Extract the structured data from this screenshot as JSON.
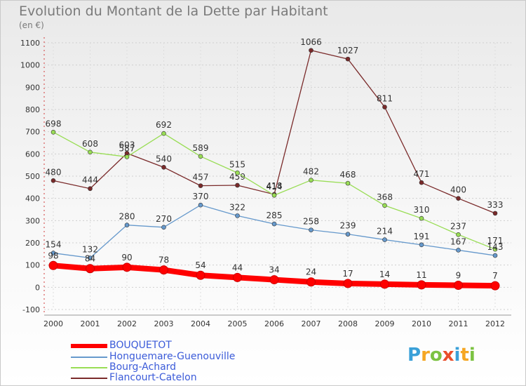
{
  "page": {
    "title": "Evolution du Montant de la Dette par Habitant",
    "subtitle": "(en €)"
  },
  "chart_data": {
    "type": "line",
    "x": [
      "2000",
      "2001",
      "2002",
      "2003",
      "2004",
      "2005",
      "2006",
      "2007",
      "2008",
      "2009",
      "2010",
      "2011",
      "2012"
    ],
    "ylim": [
      -100,
      1100
    ],
    "yticks": [
      -100,
      0,
      100,
      200,
      300,
      400,
      500,
      600,
      700,
      800,
      900,
      1000,
      1100
    ],
    "grid": true,
    "legend_position": "bottom-left",
    "series": [
      {
        "name": "BOUQUETOT",
        "color": "#ff0000",
        "values": [
          98,
          84,
          90,
          78,
          54,
          44,
          34,
          24,
          17,
          14,
          11,
          9,
          7
        ]
      },
      {
        "name": "Honguemare-Guenouville",
        "color": "#6699cc",
        "values": [
          154,
          132,
          280,
          270,
          370,
          322,
          285,
          258,
          239,
          214,
          191,
          167,
          143
        ]
      },
      {
        "name": "Bourg-Achard",
        "color": "#99dd55",
        "values": [
          698,
          608,
          587,
          692,
          589,
          515,
          414,
          482,
          468,
          368,
          310,
          237,
          171
        ]
      },
      {
        "name": "Flancourt-Catelon",
        "color": "#7a2a2a",
        "values": [
          480,
          444,
          603,
          540,
          457,
          459,
          418,
          1066,
          1027,
          811,
          471,
          400,
          333
        ]
      }
    ]
  },
  "logo": {
    "letters": [
      "P",
      "r",
      "o",
      "x",
      "i",
      "t",
      "i"
    ],
    "colors": [
      "#3aa0d8",
      "#f5a623",
      "#7cc242",
      "#e94e2b",
      "#3aa0d8",
      "#f5a623",
      "#7cc242"
    ]
  }
}
